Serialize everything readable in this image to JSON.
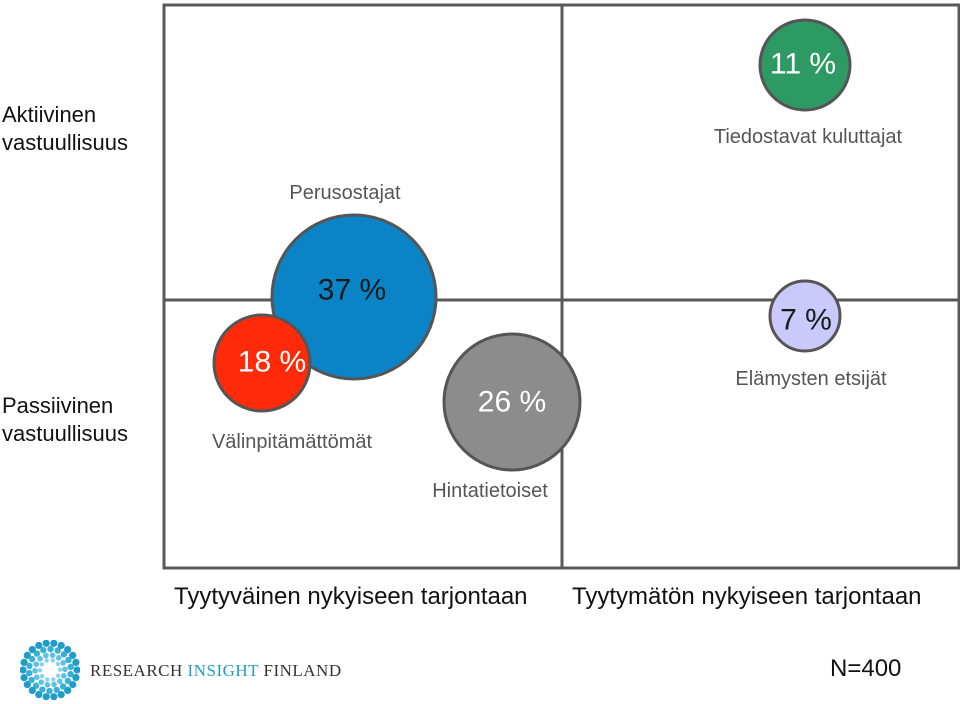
{
  "axes": {
    "y_top": "Aktiivinen\nvastuullisuus",
    "y_bottom": "Passiivinen\nvastuullisuus",
    "x_left": "Tyytyväinen nykyiseen tarjontaan",
    "x_right": "Tyytymätön nykyiseen tarjontaan"
  },
  "chart_data": {
    "type": "bubble",
    "description": "Segment bubble matrix: responsibility (active/passive) vs satisfaction with current offering",
    "series": [
      {
        "name": "Perusostajat",
        "share_pct": 37,
        "value_label": "37 %",
        "color": "#0a84c6",
        "quadrant": "top-left / bottom-left boundary"
      },
      {
        "name": "Välinpitämättömät",
        "share_pct": 18,
        "value_label": "18 %",
        "color": "#ff2a0a",
        "quadrant": "bottom-left"
      },
      {
        "name": "Hintatietoiset",
        "share_pct": 26,
        "value_label": "26 %",
        "color": "#8c8c8c",
        "quadrant": "bottom-left / bottom-right boundary"
      },
      {
        "name": "Tiedostavat kuluttajat",
        "share_pct": 11,
        "value_label": "11 %",
        "color": "#2e9a63",
        "quadrant": "top-right"
      },
      {
        "name": "Elämysten etsijät",
        "share_pct": 7,
        "value_label": "7 %",
        "color": "#c9c9fb",
        "quadrant": "bottom-right"
      }
    ],
    "sample_size": "N=400",
    "grid": true
  },
  "footer": {
    "brand_part1": "Research ",
    "brand_part2": "Insight",
    "brand_part3": " Finland",
    "brand_accent": "#1f9cc7",
    "sample": "N=400"
  }
}
